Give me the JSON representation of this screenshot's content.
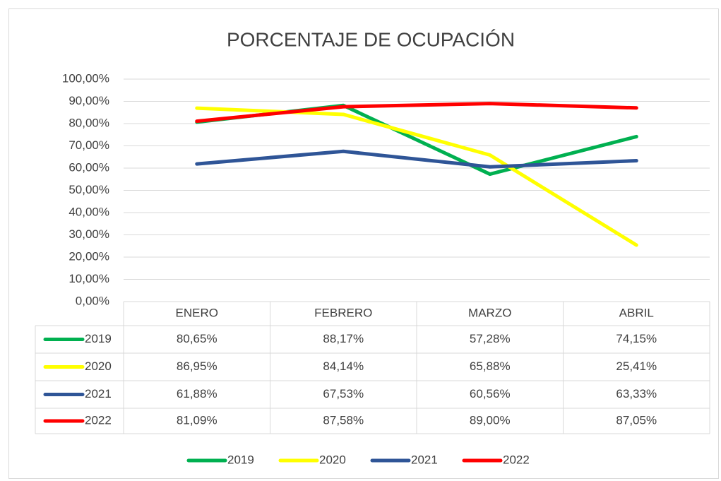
{
  "chart_data": {
    "type": "line",
    "title": "PORCENTAJE DE OCUPACIÓN",
    "categories": [
      "ENERO",
      "FEBRERO",
      "MARZO",
      "ABRIL"
    ],
    "series": [
      {
        "name": "2019",
        "color": "#00b050",
        "values": [
          80.65,
          88.17,
          57.28,
          74.15
        ],
        "value_labels": [
          "80,65%",
          "88,17%",
          "57,28%",
          "74,15%"
        ]
      },
      {
        "name": "2020",
        "color": "#ffff00",
        "values": [
          86.95,
          84.14,
          65.88,
          25.41
        ],
        "value_labels": [
          "86,95%",
          "84,14%",
          "65,88%",
          "25,41%"
        ]
      },
      {
        "name": "2021",
        "color": "#2f5597",
        "values": [
          61.88,
          67.53,
          60.56,
          63.33
        ],
        "value_labels": [
          "61,88%",
          "67,53%",
          "60,56%",
          "63,33%"
        ]
      },
      {
        "name": "2022",
        "color": "#ff0000",
        "values": [
          81.09,
          87.58,
          89.0,
          87.05
        ],
        "value_labels": [
          "81,09%",
          "87,58%",
          "89,00%",
          "87,05%"
        ]
      }
    ],
    "ylim": [
      0,
      100
    ],
    "yticks": [
      {
        "value": 0,
        "label": "0,00%"
      },
      {
        "value": 10,
        "label": "10,00%"
      },
      {
        "value": 20,
        "label": "20,00%"
      },
      {
        "value": 30,
        "label": "30,00%"
      },
      {
        "value": 40,
        "label": "40,00%"
      },
      {
        "value": 50,
        "label": "50,00%"
      },
      {
        "value": 60,
        "label": "60,00%"
      },
      {
        "value": 70,
        "label": "70,00%"
      },
      {
        "value": 80,
        "label": "80,00%"
      },
      {
        "value": 90,
        "label": "90,00%"
      },
      {
        "value": 100,
        "label": "100,00%"
      }
    ],
    "grid": true,
    "data_table": true,
    "legend": "bottom"
  }
}
